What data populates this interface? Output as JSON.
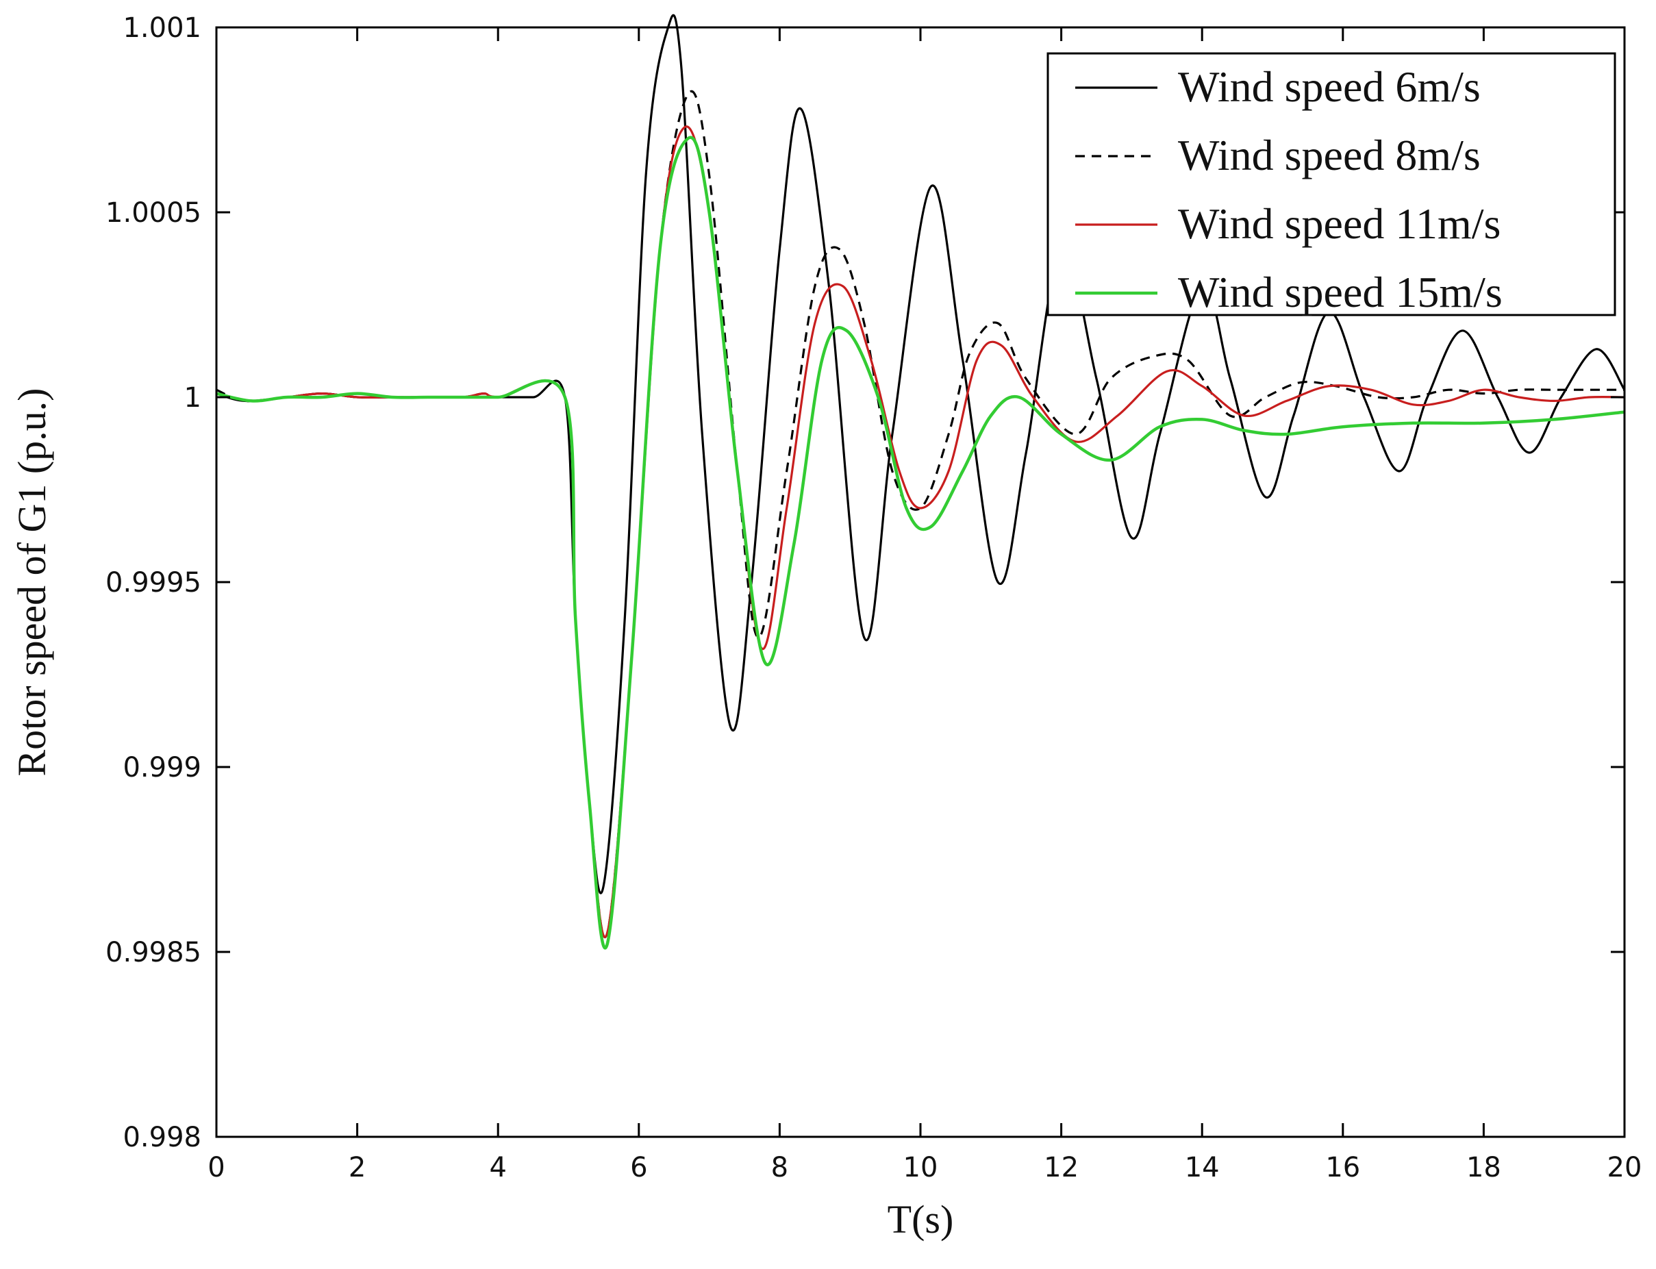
{
  "chart_data": {
    "type": "line",
    "xlabel": "T(s)",
    "ylabel": "Rotor speed of G1 (p.u.)",
    "xlim": [
      0,
      20
    ],
    "ylim": [
      0.998,
      1.001
    ],
    "xticks": [
      0,
      2,
      4,
      6,
      8,
      10,
      12,
      14,
      16,
      18,
      20
    ],
    "yticks": [
      0.998,
      0.9985,
      0.999,
      0.9995,
      1,
      1.0005,
      1.001
    ],
    "xtick_labels": [
      "0",
      "2",
      "4",
      "6",
      "8",
      "10",
      "12",
      "14",
      "16",
      "18",
      "20"
    ],
    "ytick_labels": [
      "0.998",
      "0.9985",
      "0.999",
      "0.9995",
      "1",
      "1.0005",
      "1.001"
    ],
    "grid": false,
    "legend_position": "top-right",
    "series": [
      {
        "name": "Wind speed 6m/s",
        "color": "#000000",
        "dash": "solid",
        "points": [
          [
            0,
            1.00001
          ],
          [
            0.4,
            0.99999
          ],
          [
            1,
            1.0
          ],
          [
            1.5,
            1.00001
          ],
          [
            2,
            1.0
          ],
          [
            2.5,
            1.0
          ],
          [
            3,
            1.0
          ],
          [
            3.5,
            1.0
          ],
          [
            4,
            1.0
          ],
          [
            4.5,
            1.0
          ],
          [
            4.95,
            1.0
          ],
          [
            5.1,
            0.9994
          ],
          [
            5.3,
            0.9989
          ],
          [
            5.5,
            0.99868
          ],
          [
            5.8,
            0.9994
          ],
          [
            6.1,
            1.0006
          ],
          [
            6.4,
            1.00099
          ],
          [
            6.6,
            1.0009
          ],
          [
            6.9,
            0.9999
          ],
          [
            7.3,
            0.99911
          ],
          [
            7.6,
            0.9995
          ],
          [
            8.0,
            1.0004
          ],
          [
            8.3,
            1.00078
          ],
          [
            8.7,
            1.0003
          ],
          [
            9.2,
            0.99935
          ],
          [
            9.6,
            0.9999
          ],
          [
            10.15,
            1.00057
          ],
          [
            10.6,
            1.0001
          ],
          [
            11.1,
            0.9995
          ],
          [
            11.5,
            0.99985
          ],
          [
            12.0,
            1.0004
          ],
          [
            12.5,
            1.00005
          ],
          [
            13.0,
            0.99962
          ],
          [
            13.4,
            0.9999
          ],
          [
            14.0,
            1.0003
          ],
          [
            14.4,
            1.00005
          ],
          [
            14.9,
            0.99973
          ],
          [
            15.3,
            0.99995
          ],
          [
            15.8,
            1.00023
          ],
          [
            16.3,
            1.0
          ],
          [
            16.8,
            0.9998
          ],
          [
            17.2,
            1.0
          ],
          [
            17.7,
            1.00018
          ],
          [
            18.2,
            1.0
          ],
          [
            18.65,
            0.99985
          ],
          [
            19.1,
            1.0
          ],
          [
            19.6,
            1.00013
          ],
          [
            20,
            1.00002
          ]
        ]
      },
      {
        "name": "Wind speed 8m/s",
        "color": "#000000",
        "dash": "dashed",
        "points": [
          [
            0,
            1.00002
          ],
          [
            0.4,
            0.99999
          ],
          [
            1,
            1.0
          ],
          [
            1.5,
            1.00001
          ],
          [
            2,
            1.0
          ],
          [
            2.5,
            1.0
          ],
          [
            3,
            1.0
          ],
          [
            3.5,
            1.0
          ],
          [
            3.8,
            1.00001
          ],
          [
            4,
            1.0
          ],
          [
            4.95,
            1.0
          ],
          [
            5.1,
            0.9994
          ],
          [
            5.3,
            0.9989
          ],
          [
            5.55,
            0.99855
          ],
          [
            5.9,
            0.9993
          ],
          [
            6.3,
            1.0004
          ],
          [
            6.7,
            1.00082
          ],
          [
            7.0,
            1.0006
          ],
          [
            7.4,
            0.9998
          ],
          [
            7.7,
            0.99935
          ],
          [
            8.1,
            0.9998
          ],
          [
            8.5,
            1.0003
          ],
          [
            8.85,
            1.0004
          ],
          [
            9.2,
            1.0002
          ],
          [
            9.6,
            0.9998
          ],
          [
            10.0,
            0.9997
          ],
          [
            10.4,
            0.9999
          ],
          [
            10.7,
            1.00012
          ],
          [
            11.1,
            1.0002
          ],
          [
            11.5,
            1.00005
          ],
          [
            12.2,
            0.9999
          ],
          [
            12.7,
            1.00005
          ],
          [
            13.3,
            1.00011
          ],
          [
            13.8,
            1.0001
          ],
          [
            14.4,
            0.99995
          ],
          [
            14.9,
            1.0
          ],
          [
            15.4,
            1.00004
          ],
          [
            15.9,
            1.00003
          ],
          [
            16.5,
            1.0
          ],
          [
            17.0,
            1.0
          ],
          [
            17.5,
            1.00002
          ],
          [
            18.0,
            1.00001
          ],
          [
            18.5,
            1.00002
          ],
          [
            19.0,
            1.00002
          ],
          [
            19.5,
            1.00002
          ],
          [
            20,
            1.00002
          ]
        ]
      },
      {
        "name": "Wind speed 11m/s",
        "color": "#c81e1e",
        "dash": "solid",
        "points": [
          [
            0,
            1.00001
          ],
          [
            0.5,
            0.99999
          ],
          [
            1,
            1.0
          ],
          [
            1.5,
            1.00001
          ],
          [
            2,
            1.0
          ],
          [
            2.5,
            1.0
          ],
          [
            3,
            1.0
          ],
          [
            3.5,
            1.0
          ],
          [
            3.8,
            1.00001
          ],
          [
            4,
            1.0
          ],
          [
            4.95,
            1.0
          ],
          [
            5.1,
            0.9994
          ],
          [
            5.3,
            0.9989
          ],
          [
            5.55,
            0.99855
          ],
          [
            5.9,
            0.9993
          ],
          [
            6.3,
            1.0004
          ],
          [
            6.65,
            1.00073
          ],
          [
            7.0,
            1.0005
          ],
          [
            7.4,
            0.9998
          ],
          [
            7.75,
            0.99932
          ],
          [
            8.1,
            0.9997
          ],
          [
            8.5,
            1.0002
          ],
          [
            8.9,
            1.0003
          ],
          [
            9.3,
            1.0001
          ],
          [
            9.7,
            0.9998
          ],
          [
            10.0,
            0.9997
          ],
          [
            10.4,
            0.9998
          ],
          [
            10.8,
            1.0001
          ],
          [
            11.15,
            1.00014
          ],
          [
            11.6,
            1.0
          ],
          [
            12.2,
            0.99988
          ],
          [
            12.8,
            0.99995
          ],
          [
            13.5,
            1.00007
          ],
          [
            14.0,
            1.00003
          ],
          [
            14.6,
            0.99995
          ],
          [
            15.2,
            0.99999
          ],
          [
            15.8,
            1.00003
          ],
          [
            16.4,
            1.00002
          ],
          [
            17.0,
            0.99998
          ],
          [
            17.5,
            0.99999
          ],
          [
            18.0,
            1.00002
          ],
          [
            18.5,
            1.0
          ],
          [
            19.0,
            0.99999
          ],
          [
            19.5,
            1.0
          ],
          [
            20,
            1.0
          ]
        ]
      },
      {
        "name": "Wind speed 15m/s",
        "color": "#33cc33",
        "dash": "solid",
        "points": [
          [
            0,
            1.00001
          ],
          [
            0.5,
            0.99999
          ],
          [
            1,
            1.0
          ],
          [
            1.5,
            1.0
          ],
          [
            2,
            1.00001
          ],
          [
            2.5,
            1.0
          ],
          [
            3,
            1.0
          ],
          [
            3.5,
            1.0
          ],
          [
            4,
            1.0
          ],
          [
            4.95,
            1.0
          ],
          [
            5.1,
            0.9994
          ],
          [
            5.3,
            0.9989
          ],
          [
            5.55,
            0.99852
          ],
          [
            5.9,
            0.9993
          ],
          [
            6.3,
            1.0004
          ],
          [
            6.7,
            1.0007
          ],
          [
            7.0,
            1.0005
          ],
          [
            7.4,
            0.9998
          ],
          [
            7.8,
            0.99928
          ],
          [
            8.2,
            0.9996
          ],
          [
            8.6,
            1.0001
          ],
          [
            8.95,
            1.00018
          ],
          [
            9.4,
            1.0
          ],
          [
            9.8,
            0.9997
          ],
          [
            10.15,
            0.99965
          ],
          [
            10.6,
            0.9998
          ],
          [
            11.0,
            0.99995
          ],
          [
            11.4,
            1.0
          ],
          [
            12.0,
            0.9999
          ],
          [
            12.7,
            0.99983
          ],
          [
            13.4,
            0.99992
          ],
          [
            14.0,
            0.99994
          ],
          [
            14.6,
            0.99991
          ],
          [
            15.2,
            0.9999
          ],
          [
            16.0,
            0.99992
          ],
          [
            17.0,
            0.99993
          ],
          [
            18.0,
            0.99993
          ],
          [
            19.0,
            0.99994
          ],
          [
            20,
            0.99996
          ]
        ]
      }
    ]
  }
}
